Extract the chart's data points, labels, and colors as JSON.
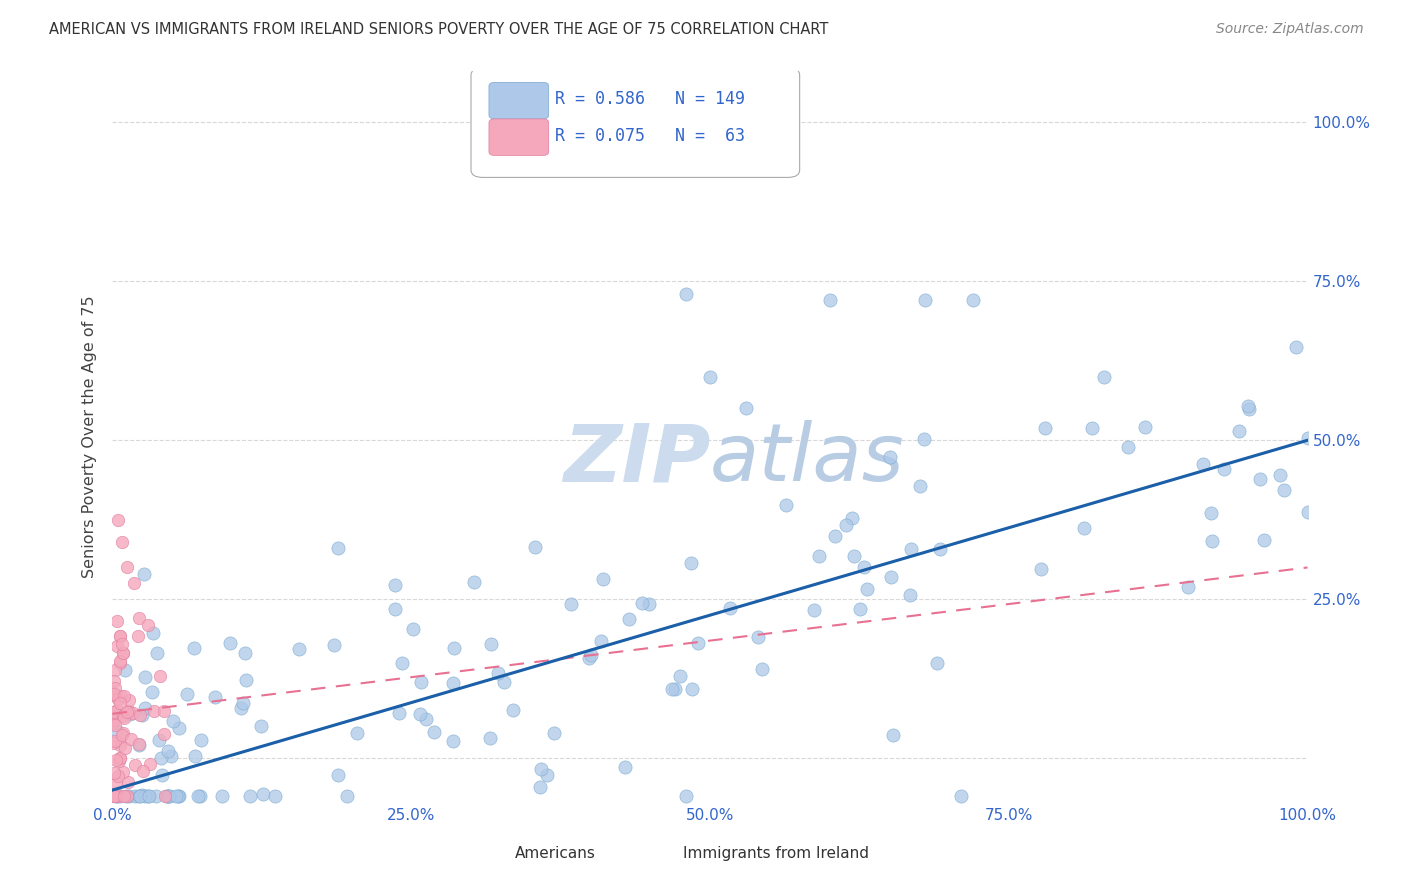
{
  "title": "AMERICAN VS IMMIGRANTS FROM IRELAND SENIORS POVERTY OVER THE AGE OF 75 CORRELATION CHART",
  "source": "Source: ZipAtlas.com",
  "ylabel": "Seniors Poverty Over the Age of 75",
  "americans_R": 0.586,
  "americans_N": 149,
  "ireland_R": 0.075,
  "ireland_N": 63,
  "americans_color": "#adc8e8",
  "ireland_color": "#f5a8bc",
  "americans_edge_color": "#7aaad0",
  "ireland_edge_color": "#e080a0",
  "americans_line_color": "#1a5fa8",
  "ireland_line_color": "#e87090",
  "title_color": "#333333",
  "source_color": "#888888",
  "legend_text_color": "#3366cc",
  "tick_label_color": "#3366cc",
  "grid_color": "#d8d8d8",
  "watermark_color": "#ccdcee",
  "xlim": [
    0.0,
    1.0
  ],
  "ylim": [
    -0.07,
    1.08
  ],
  "xticks": [
    0.0,
    0.25,
    0.5,
    0.75,
    1.0
  ],
  "yticks": [
    0.0,
    0.25,
    0.5,
    0.75,
    1.0
  ],
  "xticklabels": [
    "0.0%",
    "25.0%",
    "50.0%",
    "75.0%",
    "100.0%"
  ],
  "yticklabels": [
    "",
    "25.0%",
    "50.0%",
    "75.0%",
    "100.0%"
  ],
  "background_color": "#ffffff",
  "seed": 7
}
